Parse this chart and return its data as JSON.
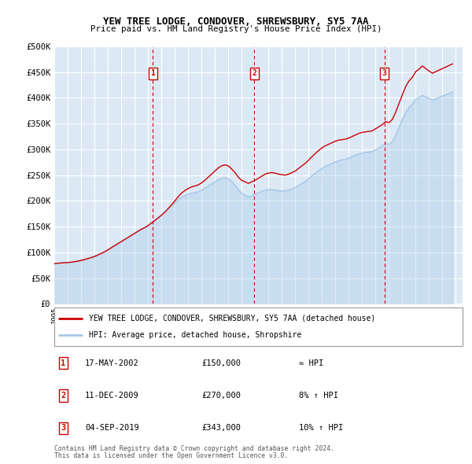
{
  "title": "YEW TREE LODGE, CONDOVER, SHREWSBURY, SY5 7AA",
  "subtitle": "Price paid vs. HM Land Registry's House Price Index (HPI)",
  "bg_color": "#dce9f5",
  "grid_color": "#ffffff",
  "hpi_color": "#a8c8e8",
  "price_color": "#cc0000",
  "ylim": [
    0,
    500000
  ],
  "yticks": [
    0,
    50000,
    100000,
    150000,
    200000,
    250000,
    300000,
    350000,
    400000,
    450000,
    500000
  ],
  "ytick_labels": [
    "£0",
    "£50K",
    "£100K",
    "£150K",
    "£200K",
    "£250K",
    "£300K",
    "£350K",
    "£400K",
    "£450K",
    "£500K"
  ],
  "xmin_year": 1995.0,
  "xmax_year": 2025.5,
  "xtick_years": [
    1995,
    1996,
    1997,
    1998,
    1999,
    2000,
    2001,
    2002,
    2003,
    2004,
    2005,
    2006,
    2007,
    2008,
    2009,
    2010,
    2011,
    2012,
    2013,
    2014,
    2015,
    2016,
    2017,
    2018,
    2019,
    2020,
    2021,
    2022,
    2023,
    2024,
    2025
  ],
  "sale_dates": [
    2002.37,
    2009.94,
    2019.67
  ],
  "sale_prices": [
    150000,
    270000,
    343000
  ],
  "sale_labels": [
    "1",
    "2",
    "3"
  ],
  "hpi_x": [
    1995.0,
    1995.25,
    1995.5,
    1995.75,
    1996.0,
    1996.25,
    1996.5,
    1996.75,
    1997.0,
    1997.25,
    1997.5,
    1997.75,
    1998.0,
    1998.25,
    1998.5,
    1998.75,
    1999.0,
    1999.25,
    1999.5,
    1999.75,
    2000.0,
    2000.25,
    2000.5,
    2000.75,
    2001.0,
    2001.25,
    2001.5,
    2001.75,
    2002.0,
    2002.25,
    2002.5,
    2002.75,
    2003.0,
    2003.25,
    2003.5,
    2003.75,
    2004.0,
    2004.25,
    2004.5,
    2004.75,
    2005.0,
    2005.25,
    2005.5,
    2005.75,
    2006.0,
    2006.25,
    2006.5,
    2006.75,
    2007.0,
    2007.25,
    2007.5,
    2007.75,
    2008.0,
    2008.25,
    2008.5,
    2008.75,
    2009.0,
    2009.25,
    2009.5,
    2009.75,
    2010.0,
    2010.25,
    2010.5,
    2010.75,
    2011.0,
    2011.25,
    2011.5,
    2011.75,
    2012.0,
    2012.25,
    2012.5,
    2012.75,
    2013.0,
    2013.25,
    2013.5,
    2013.75,
    2014.0,
    2014.25,
    2014.5,
    2014.75,
    2015.0,
    2015.25,
    2015.5,
    2015.75,
    2016.0,
    2016.25,
    2016.5,
    2016.75,
    2017.0,
    2017.25,
    2017.5,
    2017.75,
    2018.0,
    2018.25,
    2018.5,
    2018.75,
    2019.0,
    2019.25,
    2019.5,
    2019.75,
    2020.0,
    2020.25,
    2020.5,
    2020.75,
    2021.0,
    2021.25,
    2021.5,
    2021.75,
    2022.0,
    2022.25,
    2022.5,
    2022.75,
    2023.0,
    2023.25,
    2023.5,
    2023.75,
    2024.0,
    2024.25,
    2024.5,
    2024.75
  ],
  "hpi_y": [
    78000,
    79000,
    79500,
    80000,
    80500,
    81000,
    82000,
    83000,
    84500,
    86000,
    88000,
    90000,
    92000,
    95000,
    98000,
    101000,
    105000,
    109000,
    113000,
    117000,
    121000,
    125000,
    129000,
    133000,
    137000,
    141000,
    145000,
    148000,
    152000,
    157000,
    162000,
    167000,
    172000,
    178000,
    184000,
    190000,
    196000,
    202000,
    207000,
    210000,
    213000,
    215000,
    216000,
    218000,
    221000,
    225000,
    229000,
    233000,
    237000,
    241000,
    244000,
    245000,
    243000,
    238000,
    231000,
    222000,
    215000,
    211000,
    208000,
    210000,
    213000,
    216000,
    219000,
    221000,
    222000,
    222000,
    221000,
    220000,
    219000,
    219000,
    221000,
    223000,
    226000,
    230000,
    234000,
    238000,
    243000,
    249000,
    254000,
    259000,
    263000,
    267000,
    270000,
    273000,
    276000,
    278000,
    280000,
    281000,
    283000,
    286000,
    289000,
    291000,
    293000,
    294000,
    295000,
    296000,
    299000,
    303000,
    307000,
    312000,
    310000,
    315000,
    328000,
    343000,
    358000,
    372000,
    382000,
    388000,
    397000,
    401000,
    405000,
    402000,
    399000,
    396000,
    398000,
    401000,
    404000,
    406000,
    409000,
    412000
  ],
  "price_x": [
    1995.0,
    1995.25,
    1995.5,
    1995.75,
    1996.0,
    1996.25,
    1996.5,
    1996.75,
    1997.0,
    1997.25,
    1997.5,
    1997.75,
    1998.0,
    1998.25,
    1998.5,
    1998.75,
    1999.0,
    1999.25,
    1999.5,
    1999.75,
    2000.0,
    2000.25,
    2000.5,
    2000.75,
    2001.0,
    2001.25,
    2001.5,
    2001.75,
    2002.0,
    2002.25,
    2002.5,
    2002.75,
    2003.0,
    2003.25,
    2003.5,
    2003.75,
    2004.0,
    2004.25,
    2004.5,
    2004.75,
    2005.0,
    2005.25,
    2005.5,
    2005.75,
    2006.0,
    2006.25,
    2006.5,
    2006.75,
    2007.0,
    2007.25,
    2007.5,
    2007.75,
    2008.0,
    2008.25,
    2008.5,
    2008.75,
    2009.0,
    2009.25,
    2009.5,
    2009.75,
    2010.0,
    2010.25,
    2010.5,
    2010.75,
    2011.0,
    2011.25,
    2011.5,
    2011.75,
    2012.0,
    2012.25,
    2012.5,
    2012.75,
    2013.0,
    2013.25,
    2013.5,
    2013.75,
    2014.0,
    2014.25,
    2014.5,
    2014.75,
    2015.0,
    2015.25,
    2015.5,
    2015.75,
    2016.0,
    2016.25,
    2016.5,
    2016.75,
    2017.0,
    2017.25,
    2017.5,
    2017.75,
    2018.0,
    2018.25,
    2018.5,
    2018.75,
    2019.0,
    2019.25,
    2019.5,
    2019.75,
    2020.0,
    2020.25,
    2020.5,
    2020.75,
    2021.0,
    2021.25,
    2021.5,
    2021.75,
    2022.0,
    2022.25,
    2022.5,
    2022.75,
    2023.0,
    2023.25,
    2023.5,
    2023.75,
    2024.0,
    2024.25,
    2024.5,
    2024.75
  ],
  "price_y": [
    78000,
    79000,
    79500,
    80000,
    80500,
    81000,
    82000,
    83000,
    84500,
    86000,
    88000,
    90000,
    92000,
    95000,
    98000,
    101000,
    105000,
    109000,
    113000,
    117000,
    121000,
    125000,
    129000,
    133000,
    137000,
    141000,
    145000,
    148000,
    152000,
    157000,
    162000,
    167000,
    172000,
    178000,
    185000,
    192000,
    200000,
    208000,
    215000,
    220000,
    224000,
    227000,
    229000,
    231000,
    235000,
    240000,
    246000,
    252000,
    258000,
    264000,
    268000,
    270000,
    268000,
    262000,
    255000,
    246000,
    240000,
    237000,
    234000,
    237000,
    240000,
    244000,
    248000,
    252000,
    254000,
    255000,
    254000,
    252000,
    251000,
    250000,
    252000,
    255000,
    258000,
    263000,
    268000,
    273000,
    279000,
    286000,
    292000,
    298000,
    303000,
    307000,
    310000,
    313000,
    316000,
    318000,
    319000,
    320000,
    322000,
    325000,
    328000,
    331000,
    333000,
    334000,
    335000,
    336000,
    340000,
    344000,
    348000,
    354000,
    352000,
    358000,
    372000,
    389000,
    406000,
    422000,
    433000,
    440000,
    451000,
    456000,
    462000,
    457000,
    452000,
    448000,
    451000,
    454000,
    457000,
    460000,
    463000,
    466000
  ],
  "legend_entries": [
    {
      "label": "YEW TREE LODGE, CONDOVER, SHREWSBURY, SY5 7AA (detached house)",
      "color": "#cc0000"
    },
    {
      "label": "HPI: Average price, detached house, Shropshire",
      "color": "#a8c8e8"
    }
  ],
  "table_rows": [
    {
      "num": "1",
      "date": "17-MAY-2002",
      "price": "£150,000",
      "hpi": "≈ HPI"
    },
    {
      "num": "2",
      "date": "11-DEC-2009",
      "price": "£270,000",
      "hpi": "8% ↑ HPI"
    },
    {
      "num": "3",
      "date": "04-SEP-2019",
      "price": "£343,000",
      "hpi": "10% ↑ HPI"
    }
  ],
  "footer": "Contains HM Land Registry data © Crown copyright and database right 2024.\nThis data is licensed under the Open Government Licence v3.0."
}
